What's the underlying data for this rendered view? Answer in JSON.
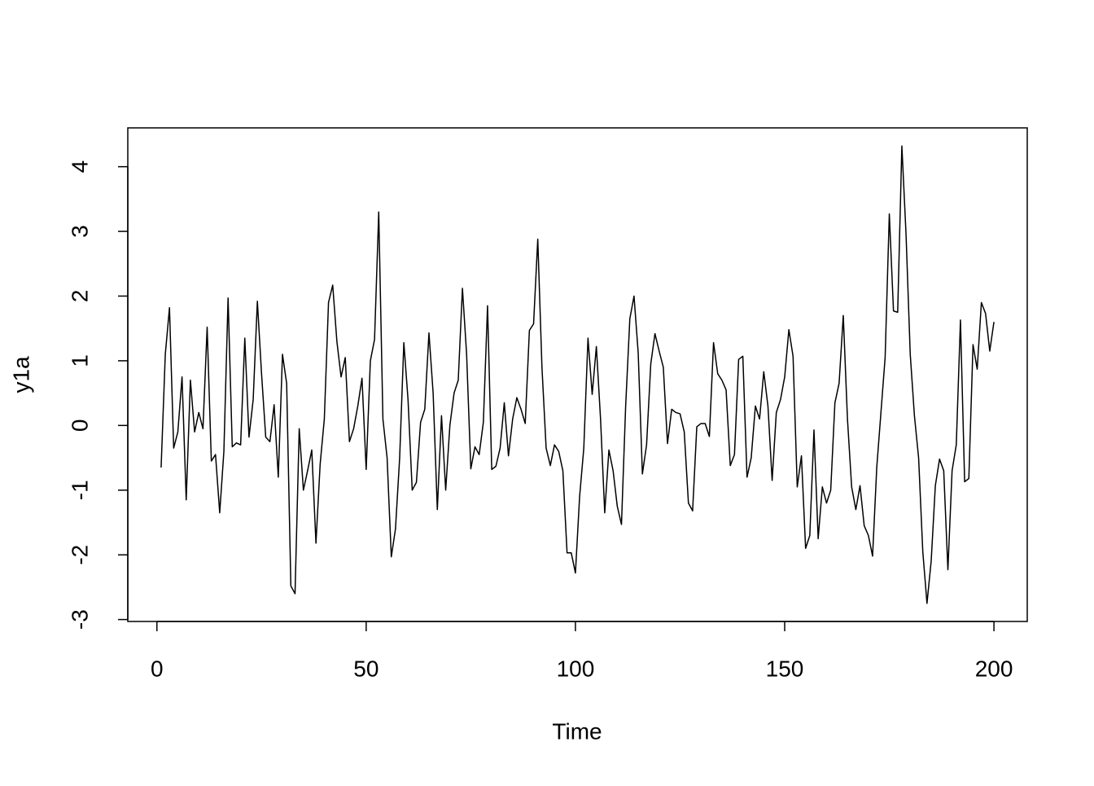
{
  "chart_data": {
    "type": "line",
    "xlabel": "Time",
    "ylabel": "y1a",
    "color": "#000000",
    "x": [
      1,
      2,
      3,
      4,
      5,
      6,
      7,
      8,
      9,
      10,
      11,
      12,
      13,
      14,
      15,
      16,
      17,
      18,
      19,
      20,
      21,
      22,
      23,
      24,
      25,
      26,
      27,
      28,
      29,
      30,
      31,
      32,
      33,
      34,
      35,
      36,
      37,
      38,
      39,
      40,
      41,
      42,
      43,
      44,
      45,
      46,
      47,
      48,
      49,
      50,
      51,
      52,
      53,
      54,
      55,
      56,
      57,
      58,
      59,
      60,
      61,
      62,
      63,
      64,
      65,
      66,
      67,
      68,
      69,
      70,
      71,
      72,
      73,
      74,
      75,
      76,
      77,
      78,
      79,
      80,
      81,
      82,
      83,
      84,
      85,
      86,
      87,
      88,
      89,
      90,
      91,
      92,
      93,
      94,
      95,
      96,
      97,
      98,
      99,
      100,
      101,
      102,
      103,
      104,
      105,
      106,
      107,
      108,
      109,
      110,
      111,
      112,
      113,
      114,
      115,
      116,
      117,
      118,
      119,
      120,
      121,
      122,
      123,
      124,
      125,
      126,
      127,
      128,
      129,
      130,
      131,
      132,
      133,
      134,
      135,
      136,
      137,
      138,
      139,
      140,
      141,
      142,
      143,
      144,
      145,
      146,
      147,
      148,
      149,
      150,
      151,
      152,
      153,
      154,
      155,
      156,
      157,
      158,
      159,
      160,
      161,
      162,
      163,
      164,
      165,
      166,
      167,
      168,
      169,
      170,
      171,
      172,
      173,
      174,
      175,
      176,
      177,
      178,
      179,
      180,
      181,
      182,
      183,
      184,
      185,
      186,
      187,
      188,
      189,
      190,
      191,
      192,
      193,
      194,
      195,
      196,
      197,
      198,
      199,
      200
    ],
    "values": [
      -0.65,
      1.1,
      1.82,
      -0.35,
      -0.1,
      0.75,
      -1.15,
      0.7,
      -0.1,
      0.2,
      -0.05,
      1.52,
      -0.55,
      -0.45,
      -1.35,
      -0.4,
      1.97,
      -0.33,
      -0.27,
      -0.3,
      1.35,
      -0.18,
      0.4,
      1.92,
      0.8,
      -0.18,
      -0.25,
      0.32,
      -0.8,
      1.1,
      0.65,
      -2.48,
      -2.6,
      -0.05,
      -1.0,
      -0.7,
      -0.38,
      -1.82,
      -0.6,
      0.1,
      1.9,
      2.17,
      1.3,
      0.75,
      1.05,
      -0.25,
      -0.05,
      0.3,
      0.73,
      -0.68,
      1.0,
      1.33,
      3.3,
      0.1,
      -0.5,
      -2.03,
      -1.6,
      -0.5,
      1.28,
      0.4,
      -1.0,
      -0.88,
      0.05,
      0.25,
      1.43,
      0.5,
      -1.3,
      0.15,
      -1.0,
      0.0,
      0.5,
      0.7,
      2.12,
      1.1,
      -0.67,
      -0.33,
      -0.45,
      0.05,
      1.85,
      -0.68,
      -0.63,
      -0.35,
      0.35,
      -0.47,
      0.1,
      0.43,
      0.25,
      0.03,
      1.47,
      1.57,
      2.88,
      0.9,
      -0.35,
      -0.62,
      -0.3,
      -0.4,
      -0.7,
      -1.97,
      -1.97,
      -2.28,
      -1.1,
      -0.35,
      1.35,
      0.48,
      1.22,
      0.1,
      -1.35,
      -0.38,
      -0.7,
      -1.25,
      -1.53,
      0.3,
      1.65,
      2.0,
      1.12,
      -0.75,
      -0.3,
      0.95,
      1.42,
      1.15,
      0.9,
      -0.28,
      0.25,
      0.2,
      0.18,
      -0.1,
      -1.2,
      -1.32,
      -0.02,
      0.03,
      0.03,
      -0.17,
      1.28,
      0.8,
      0.7,
      0.55,
      -0.62,
      -0.45,
      1.02,
      1.07,
      -0.8,
      -0.5,
      0.3,
      0.1,
      0.83,
      0.3,
      -0.85,
      0.2,
      0.4,
      0.75,
      1.48,
      1.07,
      -0.95,
      -0.47,
      -1.9,
      -1.7,
      -0.07,
      -1.75,
      -0.95,
      -1.2,
      -1.0,
      0.35,
      0.65,
      1.7,
      0.1,
      -0.95,
      -1.3,
      -0.93,
      -1.55,
      -1.7,
      -2.02,
      -0.65,
      0.2,
      1.05,
      3.27,
      1.77,
      1.75,
      4.32,
      2.95,
      1.1,
      0.15,
      -0.5,
      -1.95,
      -2.75,
      -2.1,
      -0.93,
      -0.52,
      -0.7,
      -2.23,
      -0.7,
      -0.3,
      1.63,
      -0.87,
      -0.82,
      1.25,
      0.87,
      1.9,
      1.73,
      1.15,
      1.6
    ],
    "xlim": [
      -6.96,
      207.96
    ],
    "ylim": [
      -3.03,
      4.6
    ],
    "xticks": [
      0,
      50,
      100,
      150,
      200
    ],
    "yticks": [
      -3,
      -2,
      -1,
      0,
      1,
      2,
      3,
      4
    ],
    "grid": false
  }
}
